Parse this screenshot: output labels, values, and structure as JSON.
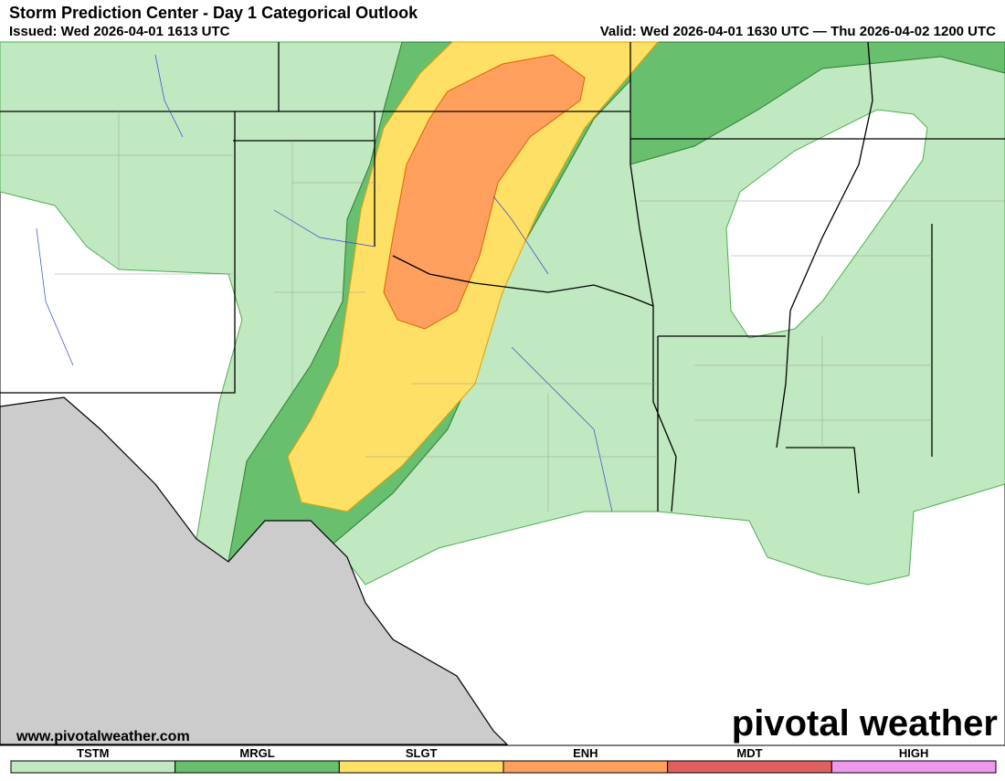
{
  "header": {
    "title": "Storm Prediction Center - Day 1 Categorical Outlook",
    "issued": "Issued: Wed 2026-04-01 1613 UTC",
    "valid": "Valid: Wed 2026-04-01 1630 UTC — Thu 2026-04-02 1200 UTC"
  },
  "map": {
    "website": "www.pivotalweather.com",
    "logo": "pivotal weather"
  },
  "legend": [
    {
      "label": "TSTM",
      "color": "#c1e9c1"
    },
    {
      "label": "MRGL",
      "color": "#68bf6e"
    },
    {
      "label": "SLGT",
      "color": "#ffe066"
    },
    {
      "label": "ENH",
      "color": "#ffa05e"
    },
    {
      "label": "MDT",
      "color": "#e06060"
    },
    {
      "label": "HIGH",
      "color": "#ee99ee"
    }
  ]
}
